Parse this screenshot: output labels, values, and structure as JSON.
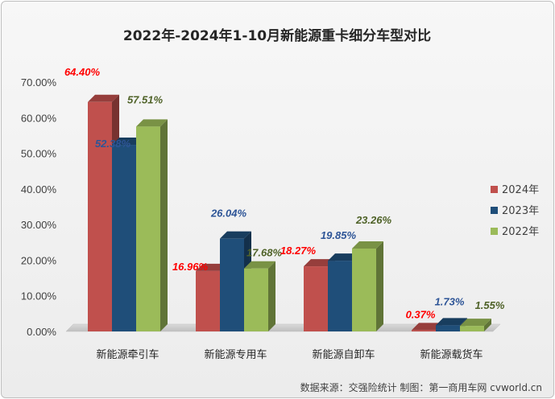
{
  "chart_data": {
    "type": "bar",
    "title": "2022年-2024年1-10月新能源重卡细分车型对比",
    "categories": [
      "新能源牵引车",
      "新能源专用车",
      "新能源自卸车",
      "新能源载货车"
    ],
    "series": [
      {
        "name": "2024年",
        "color": "#c0504d",
        "label_color": "#ff0000",
        "values": [
          64.4,
          16.96,
          18.27,
          0.37
        ],
        "labels": [
          "64.40%",
          "16.96%",
          "18.27%",
          "0.37%"
        ]
      },
      {
        "name": "2023年",
        "color": "#1f4e79",
        "label_color": "#2e5597",
        "values": [
          52.38,
          26.04,
          19.85,
          1.73
        ],
        "labels": [
          "52.38%",
          "26.04%",
          "19.85%",
          "1.73%"
        ]
      },
      {
        "name": "2022年",
        "color": "#9bbb59",
        "label_color": "#4f6228",
        "values": [
          57.51,
          17.68,
          23.26,
          1.55
        ],
        "labels": [
          "57.51%",
          "17.68%",
          "23.26%",
          "1.55%"
        ]
      }
    ],
    "y_ticks": [
      "0.00%",
      "10.00%",
      "20.00%",
      "30.00%",
      "40.00%",
      "50.00%",
      "60.00%",
      "70.00%"
    ],
    "ylim": [
      0,
      70
    ],
    "legend_position": "right",
    "grid": false
  },
  "source_note": "数据来源：交强险统计  制图：第一商用车网 cvworld.cn"
}
